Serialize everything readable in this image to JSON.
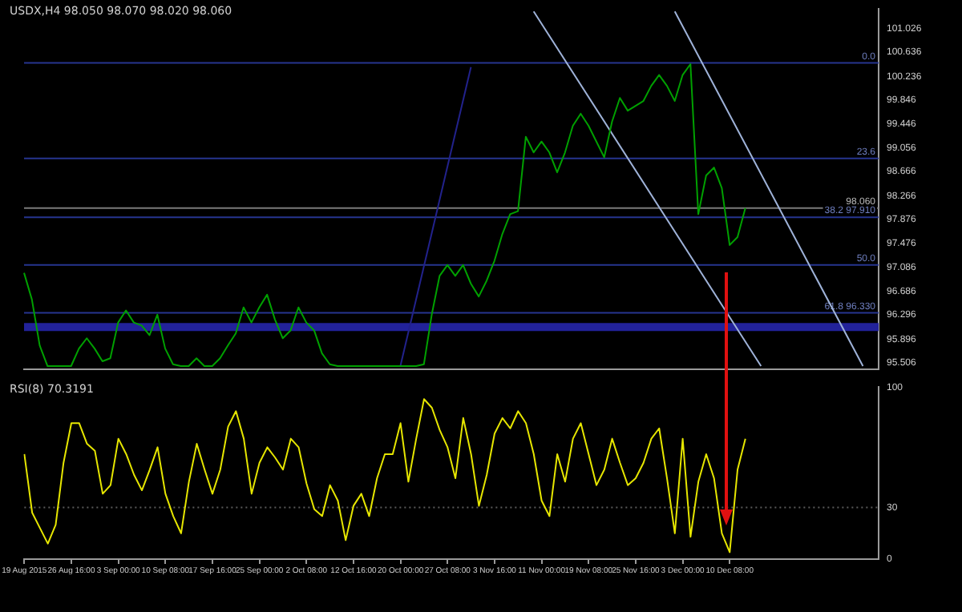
{
  "chart_data": [
    {
      "type": "line",
      "title": "USDX,H4 98.050 98.070 98.020 98.060",
      "tick_labels": "y",
      "categories": [
        null,
        null,
        null,
        null,
        null,
        null,
        null,
        null,
        null,
        null,
        null,
        null,
        null,
        null,
        null,
        null,
        null,
        null,
        null,
        null,
        null,
        null,
        null,
        null,
        null,
        null,
        null,
        null,
        null,
        null,
        null,
        null,
        null,
        null,
        null,
        null,
        null,
        null,
        null,
        null,
        null,
        null,
        null,
        null,
        null,
        null,
        null,
        null,
        null,
        null,
        null,
        null,
        null,
        null,
        null,
        null,
        null,
        null,
        null,
        null,
        null,
        null,
        null,
        null,
        null,
        null,
        null,
        null,
        null,
        null,
        null,
        null,
        null,
        null,
        null,
        null,
        null,
        null,
        null,
        null,
        null,
        null,
        null,
        null,
        null,
        null,
        null,
        null,
        null,
        null,
        null,
        null,
        null,
        null,
        null,
        null,
        null,
        null,
        null,
        null,
        null,
        null,
        null,
        null,
        null,
        null,
        null,
        null,
        null,
        null
      ],
      "ylim": [
        95.4,
        101.35
      ],
      "yticks": [
        95.506,
        95.896,
        96.296,
        96.686,
        97.086,
        97.476,
        97.876,
        98.266,
        98.666,
        99.056,
        99.446,
        99.846,
        100.236,
        100.636,
        101.026
      ],
      "series": [
        {
          "color": "#00a000",
          "values": [
            96.99,
            96.55,
            95.79,
            95.45,
            95.45,
            95.45,
            95.45,
            95.74,
            95.91,
            95.74,
            95.53,
            95.58,
            96.17,
            96.37,
            96.17,
            96.12,
            95.96,
            96.3,
            95.74,
            95.48,
            95.45,
            95.45,
            95.58,
            95.45,
            95.45,
            95.58,
            95.79,
            95.99,
            96.42,
            96.17,
            96.42,
            96.63,
            96.22,
            95.91,
            96.04,
            96.42,
            96.17,
            96.04,
            95.66,
            95.48,
            95.45,
            95.45,
            95.45,
            95.45,
            95.45,
            95.45,
            95.45,
            95.45,
            95.45,
            95.45,
            95.45,
            95.48,
            96.3,
            96.94,
            97.12,
            96.94,
            97.12,
            96.81,
            96.6,
            96.86,
            97.19,
            97.63,
            97.96,
            98.01,
            99.24,
            98.98,
            99.16,
            98.98,
            98.65,
            98.98,
            99.42,
            99.62,
            99.42,
            99.16,
            98.9,
            99.49,
            99.88,
            99.67,
            99.75,
            99.83,
            100.08,
            100.26,
            100.08,
            99.83,
            100.26,
            100.44,
            97.96,
            98.6,
            98.73,
            98.39,
            97.45,
            97.58,
            98.06,
            null,
            null,
            null,
            null,
            null,
            null,
            null,
            null,
            null,
            null,
            null,
            null,
            null,
            null,
            null,
            null,
            null
          ]
        },
        {
          "type": "line",
          "color": "#9fb3d9",
          "values": [
            null,
            null,
            null,
            null,
            null,
            null,
            null,
            null,
            null,
            null,
            null,
            null,
            null,
            null,
            null,
            null,
            null,
            null,
            null,
            null,
            null,
            null,
            null,
            null,
            null,
            null,
            null,
            null,
            null,
            null,
            null,
            null,
            null,
            null,
            null,
            null,
            null,
            null,
            null,
            null,
            null,
            null,
            null,
            null,
            null,
            null,
            null,
            null,
            null,
            null,
            null,
            null,
            null,
            null,
            null,
            null,
            null,
            null,
            null,
            null,
            null,
            null,
            null,
            null,
            null,
            101.31,
            null,
            null,
            null,
            null,
            null,
            null,
            null,
            null,
            null,
            null,
            null,
            null,
            null,
            null,
            null,
            null,
            null,
            null,
            null,
            null,
            null,
            null,
            null,
            null,
            null,
            null,
            null,
            null,
            95.45,
            null,
            null,
            null,
            null,
            null,
            null,
            null,
            null,
            null,
            null,
            null,
            null,
            null,
            null,
            null
          ]
        },
        {
          "type": "line",
          "color": "#9fb3d9",
          "values": [
            null,
            null,
            null,
            null,
            null,
            null,
            null,
            null,
            null,
            null,
            null,
            null,
            null,
            null,
            null,
            null,
            null,
            null,
            null,
            null,
            null,
            null,
            null,
            null,
            null,
            null,
            null,
            null,
            null,
            null,
            null,
            null,
            null,
            null,
            null,
            null,
            null,
            null,
            null,
            null,
            null,
            null,
            null,
            null,
            null,
            null,
            null,
            null,
            null,
            null,
            null,
            null,
            null,
            null,
            null,
            null,
            null,
            null,
            null,
            null,
            null,
            null,
            null,
            null,
            null,
            null,
            null,
            null,
            null,
            null,
            null,
            null,
            null,
            null,
            null,
            null,
            null,
            null,
            null,
            null,
            null,
            null,
            null,
            101.31,
            null,
            null,
            null,
            null,
            null,
            null,
            null,
            null,
            null,
            null,
            null,
            null,
            null,
            null,
            null,
            null,
            null,
            null,
            null,
            null,
            null,
            null,
            null,
            95.45,
            null,
            null
          ]
        },
        {
          "type": "line",
          "color": "#22228c",
          "values": [
            null,
            null,
            null,
            null,
            null,
            null,
            null,
            null,
            null,
            null,
            null,
            null,
            null,
            null,
            null,
            null,
            null,
            null,
            null,
            null,
            null,
            null,
            null,
            null,
            null,
            null,
            null,
            null,
            null,
            null,
            null,
            null,
            null,
            null,
            null,
            null,
            null,
            null,
            null,
            null,
            null,
            null,
            null,
            null,
            null,
            null,
            null,
            null,
            95.45,
            null,
            null,
            null,
            null,
            null,
            null,
            null,
            null,
            100.39,
            null,
            null,
            null,
            null,
            null,
            null,
            null,
            null,
            null,
            null,
            null,
            null,
            null,
            null,
            null,
            null,
            null,
            null,
            null,
            null,
            null,
            null,
            null,
            null,
            null,
            null,
            null,
            null,
            null,
            null,
            null,
            null,
            null,
            null,
            null,
            null,
            null,
            null,
            null,
            null,
            null,
            null,
            null,
            null,
            null,
            null,
            null,
            null,
            null,
            null,
            null,
            null
          ]
        }
      ],
      "ref_lines": [
        {
          "axis": "y",
          "value": 100.46,
          "color": "#26348f"
        },
        {
          "axis": "y",
          "value": 98.88,
          "color": "#26348f"
        },
        {
          "axis": "y",
          "value": 98.06,
          "label": "98.060",
          "color": "#7a7a7a"
        },
        {
          "axis": "y",
          "value": 97.91,
          "label": "38.2 97.910",
          "color": "#26348f"
        },
        {
          "axis": "y",
          "value": 97.12,
          "color": "#26348f"
        },
        {
          "axis": "y",
          "value": 96.33,
          "label": "61.8 96.330",
          "color": "#26348f"
        }
      ],
      "bands": [
        {
          "axis": "y",
          "from": 96.03,
          "to": 96.16,
          "color": "#22229a"
        }
      ],
      "annotations": [
        {
          "text": "0.0",
          "y": 100.46
        },
        {
          "text": "23.6",
          "y": 98.88
        },
        {
          "text": "50.0",
          "y": 97.12
        }
      ]
    },
    {
      "type": "line",
      "title": "RSI(8) 70.3191",
      "categories": [
        "19 Aug 2015",
        null,
        null,
        null,
        null,
        null,
        "26 Aug 16:00",
        null,
        null,
        null,
        null,
        null,
        "3 Sep 00:00",
        null,
        null,
        null,
        null,
        null,
        "10 Sep 08:00",
        null,
        null,
        null,
        null,
        null,
        "17 Sep 16:00",
        null,
        null,
        null,
        null,
        null,
        "25 Sep 00:00",
        null,
        null,
        null,
        null,
        null,
        "2 Oct 08:00",
        null,
        null,
        null,
        null,
        null,
        "12 Oct 16:00",
        null,
        null,
        null,
        null,
        null,
        "20 Oct 00:00",
        null,
        null,
        null,
        null,
        null,
        "27 Oct 08:00",
        null,
        null,
        null,
        null,
        null,
        "3 Nov 16:00",
        null,
        null,
        null,
        null,
        null,
        "11 Nov 00:00",
        null,
        null,
        null,
        null,
        null,
        "19 Nov 08:00",
        null,
        null,
        null,
        null,
        null,
        "25 Nov 16:00",
        null,
        null,
        null,
        null,
        null,
        "3 Dec 00:00",
        null,
        null,
        null,
        null,
        null,
        "10 Dec 08:00",
        null,
        null,
        null,
        null,
        null,
        null,
        null,
        null,
        null,
        null,
        null,
        null,
        null,
        null,
        null,
        null,
        null,
        null,
        null
      ],
      "ylim": [
        0,
        100
      ],
      "yticks": [
        0,
        30,
        100
      ],
      "series": [
        {
          "color": "#e6e600",
          "values": [
            61,
            27,
            18,
            9,
            20,
            56,
            79,
            79,
            67,
            63,
            38,
            43,
            70,
            61,
            49,
            40,
            52,
            65,
            38,
            25,
            15,
            45,
            67,
            52,
            38,
            52,
            77,
            86,
            70,
            38,
            56,
            65,
            59,
            52,
            70,
            65,
            44,
            29,
            25,
            43,
            34,
            11,
            31,
            38,
            25,
            47,
            61,
            61,
            79,
            45,
            70,
            93,
            88,
            75,
            65,
            47,
            82,
            61,
            31,
            49,
            73,
            82,
            76,
            86,
            79,
            61,
            34,
            25,
            61,
            45,
            70,
            79,
            61,
            43,
            52,
            70,
            56,
            43,
            47,
            56,
            70,
            76,
            47,
            15,
            70,
            13,
            45,
            61,
            47,
            15,
            4,
            52,
            70,
            null,
            null,
            null,
            null,
            null,
            null,
            null,
            null,
            null,
            null,
            null,
            null,
            null,
            null,
            null,
            null,
            null
          ]
        }
      ],
      "ref_lines": [
        {
          "axis": "y",
          "value": 30,
          "color": "#5a5a5a",
          "line_style": "dotted"
        }
      ]
    }
  ]
}
